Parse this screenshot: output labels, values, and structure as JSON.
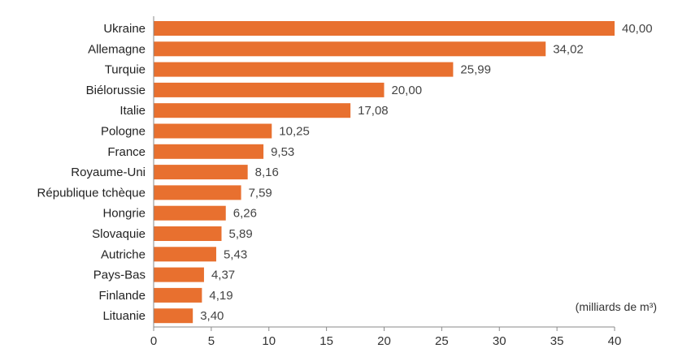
{
  "chart_data": {
    "type": "bar",
    "orientation": "horizontal",
    "categories": [
      "Ukraine",
      "Allemagne",
      "Turquie",
      "Biélorussie",
      "Italie",
      "Pologne",
      "France",
      "Royaume-Uni",
      "République tchèque",
      "Hongrie",
      "Slovaquie",
      "Autriche",
      "Pays-Bas",
      "Finlande",
      "Lituanie"
    ],
    "values": [
      40.0,
      34.02,
      25.99,
      20.0,
      17.08,
      10.25,
      9.53,
      8.16,
      7.59,
      6.26,
      5.89,
      5.43,
      4.37,
      4.19,
      3.4
    ],
    "value_labels": [
      "40,00",
      "34,02",
      "25,99",
      "20,00",
      "17,08",
      "10,25",
      "9,53",
      "8,16",
      "7,59",
      "6,26",
      "5,89",
      "5,43",
      "4,37",
      "4,19",
      "3,40"
    ],
    "xticks": [
      0,
      5,
      10,
      15,
      20,
      25,
      30,
      35,
      40
    ],
    "xlim": [
      0,
      40
    ],
    "unit_label": "(milliards de m³)",
    "title": "",
    "xlabel": "",
    "ylabel": "",
    "grid": false,
    "bar_color": "#E8702F",
    "axis_color": "#8A8A8A"
  }
}
